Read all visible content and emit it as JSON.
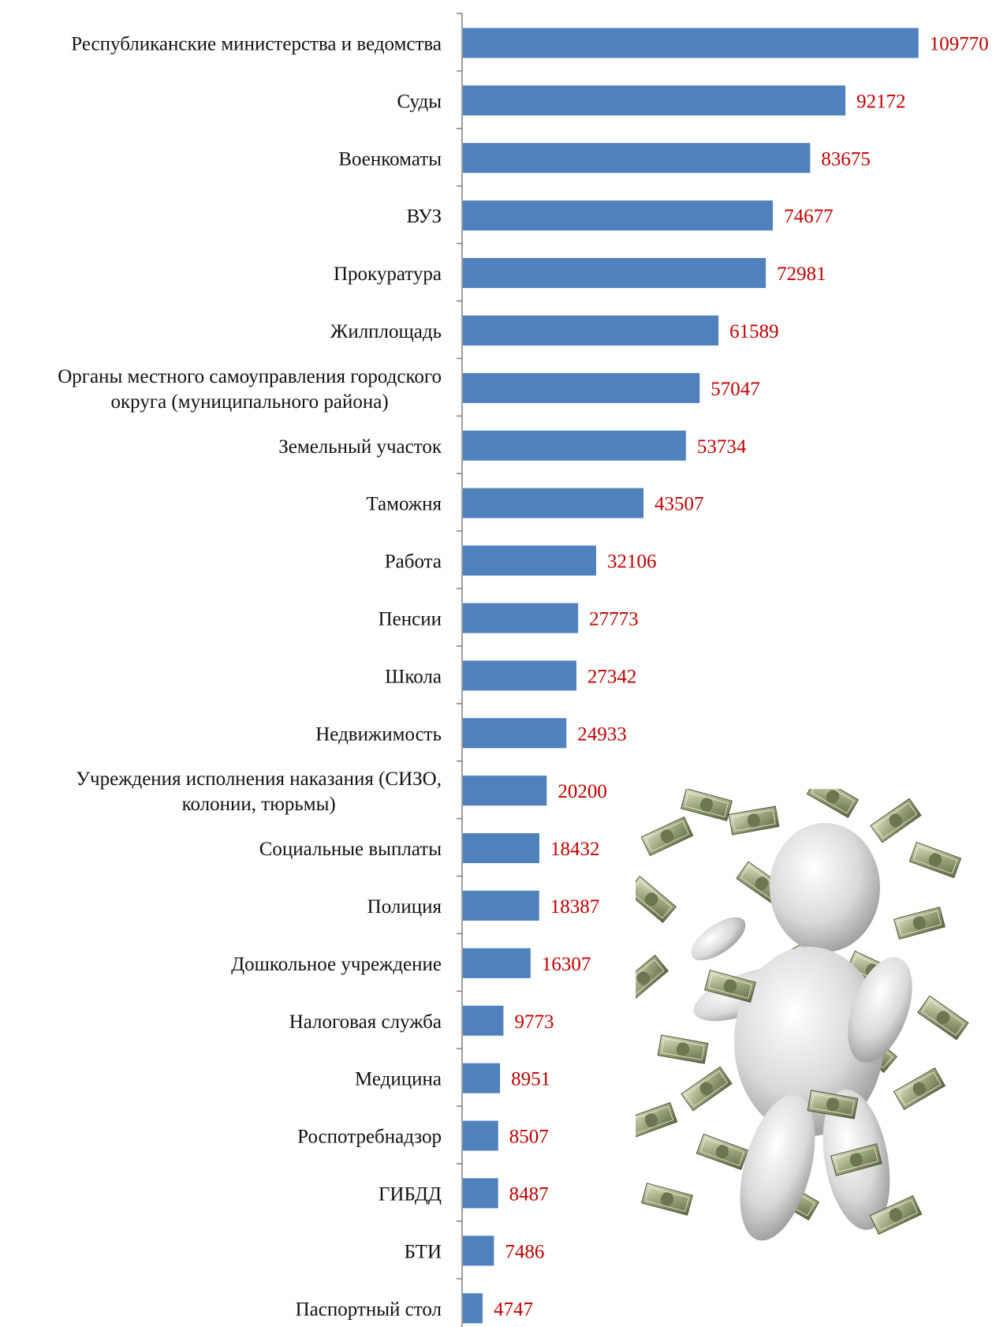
{
  "chart_data": {
    "type": "bar",
    "orientation": "horizontal",
    "title": "",
    "xlabel": "",
    "ylabel": "",
    "xlim": [
      0,
      110000
    ],
    "grid": false,
    "legend": "none",
    "bar_color": "#4f81bd",
    "value_label_color": "#c00000",
    "categories": [
      [
        "Республиканские министерства и ведомства"
      ],
      [
        "Суды"
      ],
      [
        "Военкоматы"
      ],
      [
        "ВУЗ"
      ],
      [
        "Прокуратура"
      ],
      [
        "Жилплощадь"
      ],
      [
        "Органы местного самоуправления городского",
        "округа (муниципального района)"
      ],
      [
        "Земельный участок"
      ],
      [
        "Таможня"
      ],
      [
        "Работа"
      ],
      [
        "Пенсии"
      ],
      [
        "Школа"
      ],
      [
        "Недвижимость"
      ],
      [
        "Учреждения исполнения наказания (СИЗО,",
        "колонии, тюрьмы)"
      ],
      [
        "Социальные выплаты"
      ],
      [
        "Полиция"
      ],
      [
        "Дошкольное учреждение"
      ],
      [
        "Налоговая служба"
      ],
      [
        "Медицина"
      ],
      [
        "Роспотребнадзор"
      ],
      [
        "ГИБДД"
      ],
      [
        "БТИ"
      ],
      [
        "Паспортный стол"
      ]
    ],
    "values": [
      109770,
      92172,
      83675,
      74677,
      72981,
      61589,
      57047,
      53734,
      43507,
      32106,
      27773,
      27342,
      24933,
      20200,
      18432,
      18387,
      16307,
      9773,
      8951,
      8507,
      8487,
      7486,
      4747
    ]
  },
  "illustration": {
    "icon": "figure-with-falling-money-icon"
  }
}
